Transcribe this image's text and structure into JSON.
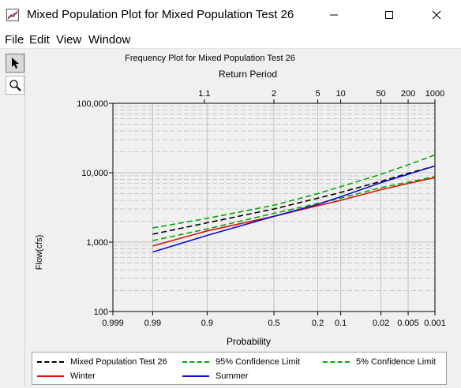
{
  "window": {
    "title": "Mixed Population Plot for Mixed Population Test 26",
    "app_icon": "chart-window-icon",
    "minimize_icon": "minimize-icon",
    "maximize_icon": "maximize-icon",
    "close_icon": "close-icon"
  },
  "menu": {
    "items": [
      "File",
      "Edit",
      "View",
      "Window"
    ]
  },
  "toolbox": {
    "tools": [
      {
        "icon": "arrow-pointer-icon",
        "selected": true
      },
      {
        "icon": "magnifier-icon",
        "selected": false
      }
    ]
  },
  "colors": {
    "black": "#000000",
    "green": "#00aa00",
    "red": "#e01010",
    "blue": "#1010d0"
  },
  "chart_data": {
    "type": "line",
    "title": "Frequency Plot for Mixed Population Test 26",
    "top_axis_label": "Return Period",
    "top_ticks": [
      "1.1",
      "2",
      "5",
      "10",
      "50",
      "200",
      "1000"
    ],
    "top_tick_values": [
      1.1,
      2,
      5,
      10,
      50,
      200,
      1000
    ],
    "xlabel": "Probability",
    "x_scale": "normal-probability",
    "x_ticks": [
      "0.999",
      "0.99",
      "0.9",
      "0.5",
      "0.2",
      "0.1",
      "0.02",
      "0.005",
      "0.001"
    ],
    "x_tick_values": [
      0.999,
      0.99,
      0.9,
      0.5,
      0.2,
      0.1,
      0.02,
      0.005,
      0.001
    ],
    "xlim": [
      0.999,
      0.001
    ],
    "ylabel": "Flow(cfs)",
    "y_scale": "log",
    "y_ticks": [
      "100",
      "1,000",
      "10,000",
      "100,000"
    ],
    "y_tick_values": [
      100,
      1000,
      10000,
      100000
    ],
    "ylim": [
      100,
      100000
    ],
    "grid": true,
    "legend_position": "bottom",
    "series": [
      {
        "name": "Mixed Population Test 26",
        "color": "#000000",
        "dash": true,
        "x": [
          0.99,
          0.9,
          0.5,
          0.2,
          0.1,
          0.02,
          0.005,
          0.001
        ],
        "y": [
          1300,
          1900,
          3000,
          4300,
          5200,
          7500,
          9800,
          12500
        ]
      },
      {
        "name": "95% Confidence Limit",
        "color": "#00aa00",
        "dash": true,
        "x": [
          0.99,
          0.9,
          0.5,
          0.2,
          0.1,
          0.02,
          0.005,
          0.001
        ],
        "y": [
          1600,
          2200,
          3400,
          5000,
          6300,
          9500,
          13000,
          18000
        ]
      },
      {
        "name": "5% Confidence Limit",
        "color": "#00aa00",
        "dash": true,
        "x": [
          0.99,
          0.9,
          0.5,
          0.2,
          0.1,
          0.02,
          0.005,
          0.001
        ],
        "y": [
          1050,
          1550,
          2600,
          3600,
          4300,
          6100,
          7300,
          8800
        ]
      },
      {
        "name": "Winter",
        "color": "#e01010",
        "dash": false,
        "x": [
          0.99,
          0.9,
          0.5,
          0.2,
          0.1,
          0.02,
          0.005,
          0.001
        ],
        "y": [
          880,
          1450,
          2350,
          3350,
          4000,
          5700,
          7000,
          8500
        ]
      },
      {
        "name": "Summer",
        "color": "#1010d0",
        "dash": false,
        "x": [
          0.99,
          0.9,
          0.5,
          0.2,
          0.1,
          0.02,
          0.005,
          0.001
        ],
        "y": [
          720,
          1250,
          2350,
          3500,
          4500,
          7200,
          9500,
          12500
        ]
      }
    ]
  }
}
